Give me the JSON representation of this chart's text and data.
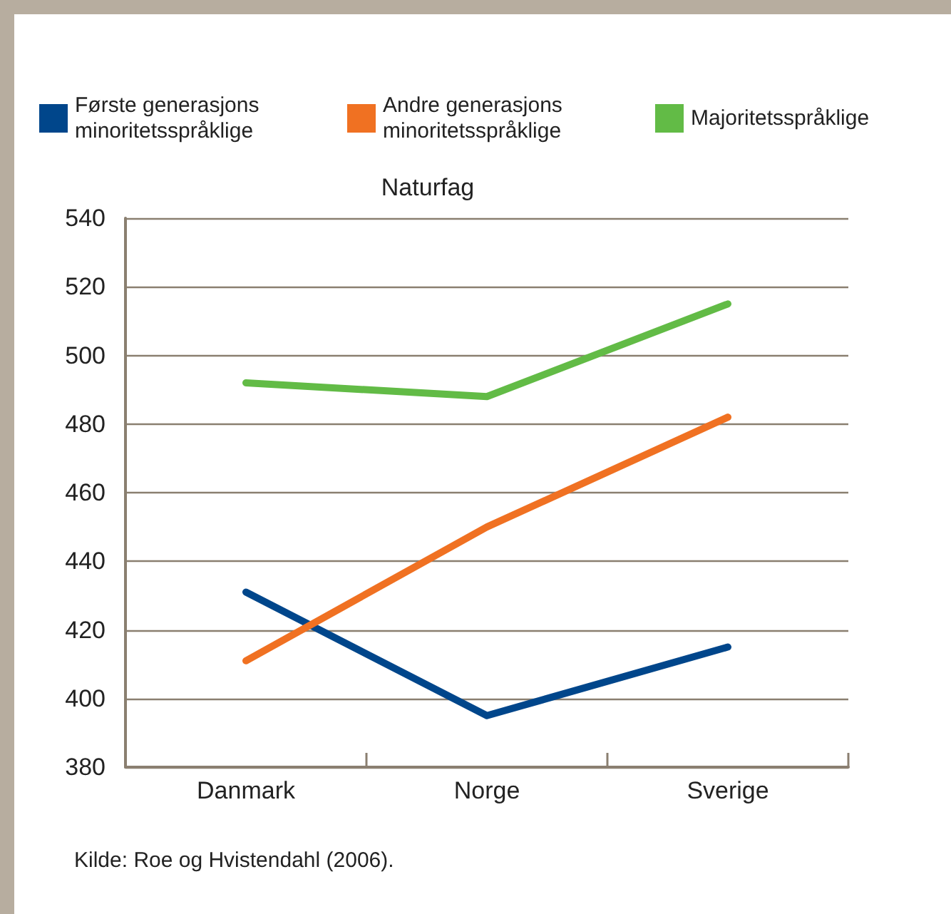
{
  "chart_data": {
    "type": "line",
    "title": "Naturfag",
    "categories": [
      "Danmark",
      "Norge",
      "Sverige"
    ],
    "series": [
      {
        "name": "Første generasjons minoritetsspråklige",
        "color": "#00468b",
        "values": [
          431,
          395,
          415
        ]
      },
      {
        "name": "Andre generasjons minoritetsspråklige",
        "color": "#f07122",
        "values": [
          411,
          450,
          482
        ]
      },
      {
        "name": "Majoritetsspråklige",
        "color": "#62bb46",
        "values": [
          492,
          488,
          515
        ]
      }
    ],
    "ylim": [
      380,
      540
    ],
    "yticks": [
      380,
      400,
      420,
      440,
      460,
      480,
      500,
      520,
      540
    ],
    "grid": "y",
    "legend": "top",
    "marker": "none",
    "line_style": "solid",
    "annotations": [
      "Kilde: Roe og Hvistendahl (2006)."
    ]
  }
}
